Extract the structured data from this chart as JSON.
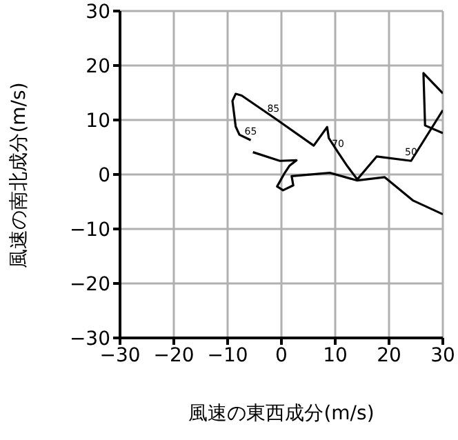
{
  "chart_data": {
    "type": "line",
    "xlabel": "風速の東西成分(m/s)",
    "ylabel": "風速の南北成分(m/s)",
    "series": [
      {
        "color": "#000000",
        "x": [
          30,
          24.5,
          19.2,
          14.1,
          9,
          1.9,
          2.2,
          0.3,
          -0.8,
          0.5,
          1.5,
          2.8,
          -0.3,
          -5.3
        ],
        "values": [
          -7.3,
          -4.8,
          -0.5,
          -1.1,
          0.3,
          -0.3,
          -2,
          -2.9,
          -2.2,
          0.1,
          1.6,
          2.6,
          2.5,
          4.1
        ]
      },
      {
        "color": "#000000",
        "x": [
          -5.7,
          -7.8,
          -8.5,
          -9.1,
          -8.5,
          -7.4,
          -1.5,
          6,
          8.5,
          8.8,
          10.5,
          12.2,
          14.1,
          17.7,
          24.1,
          30
        ],
        "values": [
          6.3,
          7.3,
          8.8,
          13.5,
          14.8,
          14.5,
          10.5,
          5.3,
          8.7,
          6.7,
          4.1,
          1.6,
          -0.9,
          3.3,
          2.5,
          11.8
        ]
      },
      {
        "color": "#000000",
        "x": [
          30,
          26.4,
          26.7,
          30
        ],
        "values": [
          14.9,
          18.6,
          9,
          7.6
        ]
      }
    ],
    "xlim": [
      -30,
      30
    ],
    "xticks": [
      -30,
      -20,
      -10,
      0,
      10,
      20,
      30
    ],
    "ylim": [
      -30,
      30
    ],
    "yticks": [
      -30,
      -20,
      -10,
      0,
      10,
      20,
      30
    ],
    "grid": true,
    "marker": "none",
    "line_style": "solid",
    "annotations": [
      {
        "text": "85",
        "x": -1.5,
        "y": 10.5
      },
      {
        "text": "65",
        "x": -5.7,
        "y": 6.3
      },
      {
        "text": "70",
        "x": 10.5,
        "y": 4.1
      },
      {
        "text": "50",
        "x": 24.1,
        "y": 2.5
      }
    ]
  }
}
